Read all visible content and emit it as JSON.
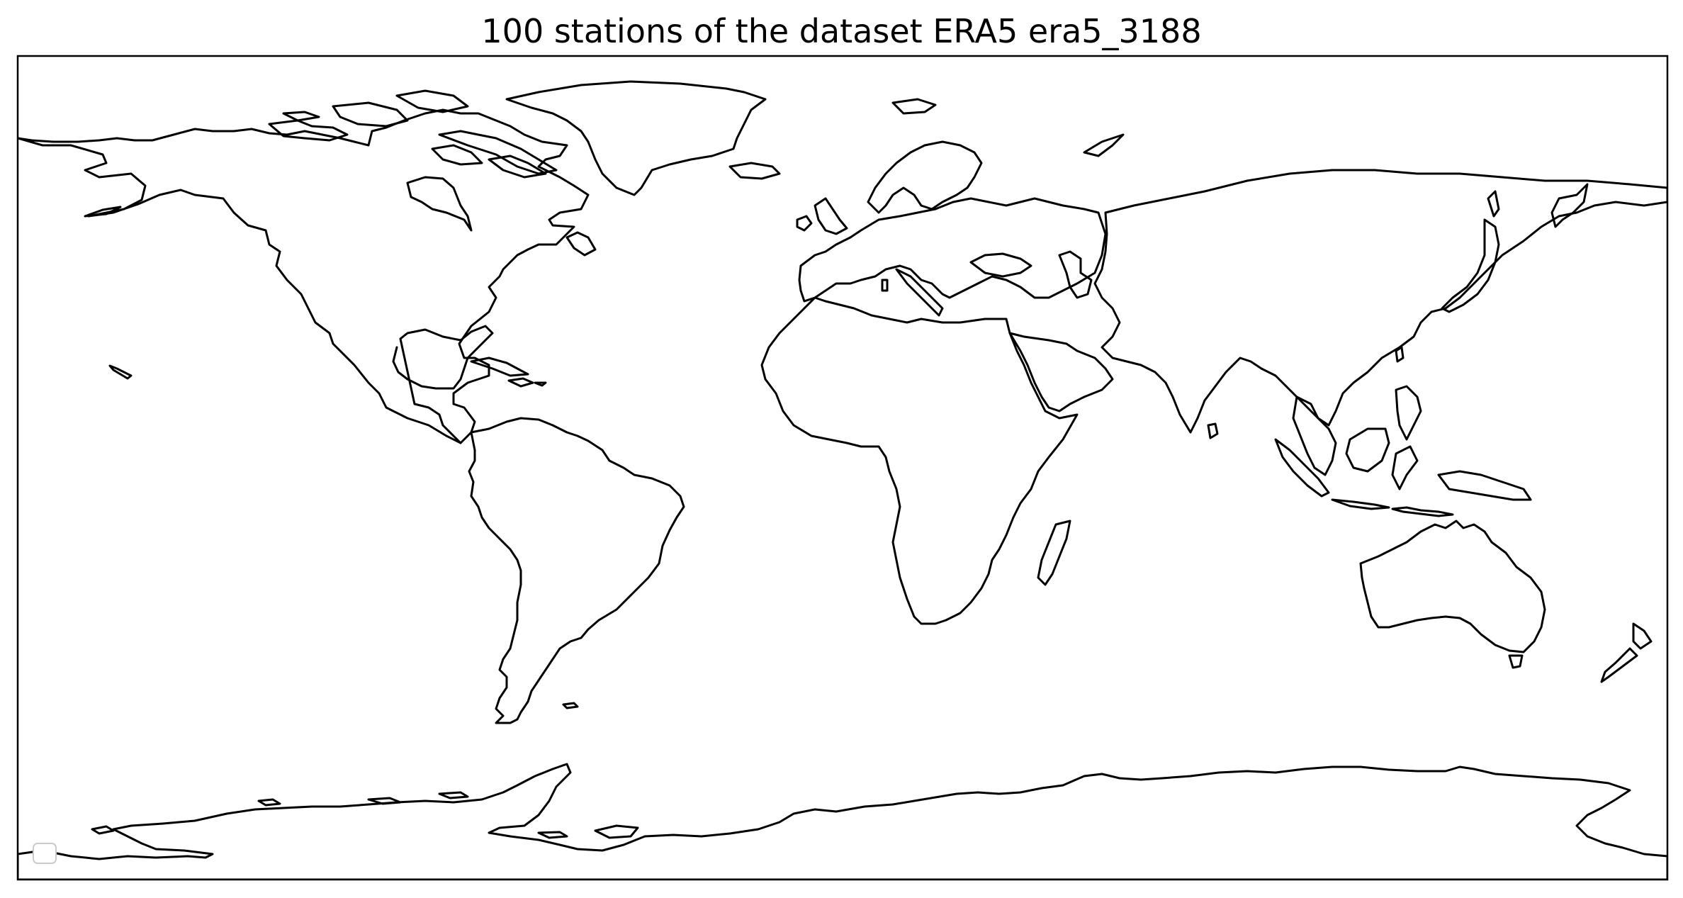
{
  "map": {
    "title": "100 stations of the dataset ERA5 era5_3188",
    "projection": "PlateCarree",
    "extent": {
      "lon": [
        -180,
        180
      ],
      "lat": [
        -90,
        90
      ]
    },
    "feature": "coastlines",
    "coast_color": "#000000",
    "background": "#ffffff",
    "legend": {
      "placement": "lower-left",
      "entries": []
    },
    "stations": {
      "count": 100,
      "visible_markers": 0
    }
  }
}
